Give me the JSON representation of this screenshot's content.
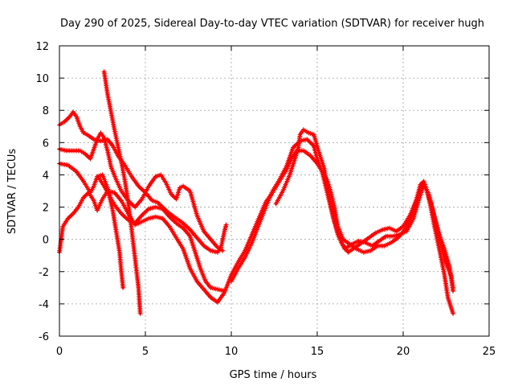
{
  "chart_data": {
    "type": "scatter",
    "title": "Day 290 of 2025, Sidereal Day-to-day VTEC variation (SDTVAR) for receiver hugh",
    "xlabel": "GPS time / hours",
    "ylabel": "SDTVAR / TECUs",
    "xlim": [
      0,
      25
    ],
    "ylim": [
      -6,
      12
    ],
    "xticks": [
      "0",
      "5",
      "10",
      "15",
      "20",
      "25"
    ],
    "yticks": [
      "-6",
      "-4",
      "-2",
      "0",
      "2",
      "4",
      "6",
      "8",
      "10",
      "12"
    ],
    "grid": true,
    "marker": "+",
    "color": "#ff0000",
    "series": [
      {
        "name": "s1",
        "points": [
          [
            0,
            7.1
          ],
          [
            0.3,
            7.3
          ],
          [
            0.6,
            7.6
          ],
          [
            0.8,
            7.9
          ],
          [
            1.0,
            7.6
          ],
          [
            1.2,
            7.0
          ],
          [
            1.4,
            6.6
          ],
          [
            1.6,
            6.5
          ],
          [
            2.0,
            6.2
          ],
          [
            2.4,
            6.1
          ],
          [
            2.8,
            6.2
          ],
          [
            3.1,
            5.8
          ],
          [
            3.4,
            5.2
          ],
          [
            3.8,
            4.6
          ],
          [
            4.2,
            3.9
          ],
          [
            4.6,
            3.3
          ],
          [
            5.0,
            2.9
          ],
          [
            5.4,
            2.4
          ],
          [
            5.7,
            2.3
          ],
          [
            6.0,
            2.0
          ],
          [
            6.4,
            1.6
          ],
          [
            6.8,
            1.3
          ],
          [
            7.2,
            1.0
          ],
          [
            7.6,
            0.6
          ],
          [
            8.0,
            0.1
          ],
          [
            8.4,
            -0.4
          ],
          [
            8.8,
            -0.7
          ],
          [
            9.2,
            -0.8
          ],
          [
            9.4,
            -0.5
          ],
          [
            9.6,
            0.5
          ],
          [
            9.7,
            0.9
          ]
        ]
      },
      {
        "name": "s2",
        "points": [
          [
            0,
            5.6
          ],
          [
            0.4,
            5.5
          ],
          [
            0.8,
            5.5
          ],
          [
            1.2,
            5.5
          ],
          [
            1.5,
            5.3
          ],
          [
            1.8,
            5.0
          ],
          [
            2.0,
            5.6
          ],
          [
            2.2,
            6.2
          ],
          [
            2.4,
            6.6
          ],
          [
            2.6,
            6.3
          ],
          [
            2.8,
            5.5
          ],
          [
            3.0,
            4.5
          ],
          [
            3.3,
            3.7
          ],
          [
            3.6,
            3.0
          ],
          [
            4.0,
            2.4
          ],
          [
            4.4,
            2.0
          ],
          [
            4.8,
            2.5
          ],
          [
            5.2,
            3.3
          ],
          [
            5.6,
            3.9
          ],
          [
            5.9,
            4.0
          ],
          [
            6.2,
            3.5
          ],
          [
            6.5,
            2.8
          ],
          [
            6.8,
            2.5
          ],
          [
            7.0,
            3.2
          ],
          [
            7.2,
            3.3
          ],
          [
            7.6,
            3.0
          ],
          [
            8.0,
            1.5
          ],
          [
            8.4,
            0.5
          ],
          [
            8.8,
            0.0
          ],
          [
            9.2,
            -0.5
          ],
          [
            9.5,
            -0.7
          ]
        ]
      },
      {
        "name": "s3",
        "points": [
          [
            0,
            4.7
          ],
          [
            0.5,
            4.6
          ],
          [
            1.0,
            4.2
          ],
          [
            1.4,
            3.6
          ],
          [
            1.8,
            2.9
          ],
          [
            2.0,
            3.3
          ],
          [
            2.2,
            3.9
          ],
          [
            2.5,
            4.0
          ],
          [
            2.8,
            3.2
          ],
          [
            3.0,
            2.5
          ],
          [
            3.3,
            2.0
          ],
          [
            3.6,
            1.6
          ],
          [
            4.0,
            1.2
          ],
          [
            4.4,
            1.0
          ],
          [
            4.8,
            1.5
          ],
          [
            5.2,
            1.9
          ],
          [
            5.6,
            2.0
          ],
          [
            6.0,
            1.9
          ],
          [
            6.4,
            1.4
          ],
          [
            6.8,
            1.0
          ],
          [
            7.2,
            0.7
          ],
          [
            7.6,
            0.2
          ],
          [
            7.9,
            -0.8
          ],
          [
            8.2,
            -1.8
          ],
          [
            8.5,
            -2.6
          ],
          [
            8.8,
            -3.0
          ],
          [
            9.2,
            -3.1
          ],
          [
            9.6,
            -3.2
          ]
        ]
      },
      {
        "name": "s4",
        "points": [
          [
            0,
            -0.8
          ],
          [
            0.2,
            0.8
          ],
          [
            0.5,
            1.3
          ],
          [
            0.8,
            1.6
          ],
          [
            1.1,
            2.0
          ],
          [
            1.4,
            2.6
          ],
          [
            1.7,
            2.9
          ],
          [
            2.0,
            2.4
          ],
          [
            2.2,
            1.8
          ],
          [
            2.5,
            2.5
          ],
          [
            2.8,
            3.0
          ],
          [
            3.2,
            2.9
          ],
          [
            3.6,
            2.4
          ],
          [
            4.0,
            1.6
          ],
          [
            4.4,
            0.9
          ],
          [
            4.8,
            1.1
          ],
          [
            5.2,
            1.3
          ],
          [
            5.6,
            1.4
          ],
          [
            6.0,
            1.3
          ],
          [
            6.4,
            0.8
          ],
          [
            6.8,
            0.1
          ],
          [
            7.2,
            -0.6
          ],
          [
            7.6,
            -1.8
          ],
          [
            8.0,
            -2.6
          ],
          [
            8.4,
            -3.1
          ],
          [
            8.8,
            -3.6
          ],
          [
            9.2,
            -3.9
          ],
          [
            9.6,
            -3.3
          ],
          [
            10.0,
            -2.2
          ],
          [
            10.4,
            -1.4
          ],
          [
            10.8,
            -0.7
          ],
          [
            11.2,
            0.3
          ],
          [
            11.6,
            1.3
          ],
          [
            12.0,
            2.3
          ],
          [
            12.4,
            2.9
          ],
          [
            12.8,
            3.6
          ],
          [
            13.2,
            4.3
          ],
          [
            13.5,
            5.0
          ],
          [
            13.8,
            5.5
          ],
          [
            14.2,
            5.5
          ],
          [
            14.6,
            5.2
          ],
          [
            15.0,
            4.7
          ],
          [
            15.3,
            4.2
          ],
          [
            15.6,
            3.6
          ],
          [
            15.8,
            2.9
          ],
          [
            16.0,
            2.0
          ],
          [
            16.2,
            0.8
          ],
          [
            16.5,
            0.0
          ],
          [
            16.9,
            -0.3
          ],
          [
            17.3,
            -0.6
          ],
          [
            17.7,
            -0.8
          ],
          [
            18.1,
            -0.7
          ],
          [
            18.5,
            -0.4
          ],
          [
            18.9,
            -0.4
          ],
          [
            19.3,
            -0.2
          ],
          [
            19.7,
            0.1
          ],
          [
            20.1,
            0.6
          ],
          [
            20.5,
            1.5
          ],
          [
            20.8,
            2.6
          ],
          [
            21.0,
            3.4
          ],
          [
            21.2,
            3.6
          ],
          [
            21.4,
            3.0
          ],
          [
            21.6,
            2.0
          ],
          [
            21.8,
            0.9
          ],
          [
            22.1,
            -0.6
          ],
          [
            22.4,
            -2.2
          ],
          [
            22.6,
            -3.6
          ],
          [
            22.9,
            -4.6
          ]
        ]
      },
      {
        "name": "s5",
        "points": [
          [
            10.0,
            -2.6
          ],
          [
            10.4,
            -1.8
          ],
          [
            10.8,
            -1.1
          ],
          [
            11.2,
            -0.2
          ],
          [
            11.6,
            0.9
          ],
          [
            12.0,
            2.0
          ],
          [
            12.4,
            3.0
          ],
          [
            12.8,
            3.7
          ],
          [
            13.2,
            4.5
          ],
          [
            13.6,
            5.7
          ],
          [
            14.0,
            6.1
          ],
          [
            14.4,
            6.2
          ],
          [
            14.8,
            5.8
          ],
          [
            15.0,
            5.0
          ],
          [
            15.3,
            4.1
          ],
          [
            15.6,
            2.8
          ],
          [
            16.0,
            1.1
          ],
          [
            16.4,
            -0.2
          ],
          [
            16.8,
            -0.8
          ],
          [
            17.2,
            -0.5
          ],
          [
            17.6,
            -0.2
          ],
          [
            18.0,
            0.1
          ],
          [
            18.4,
            0.4
          ],
          [
            18.8,
            0.6
          ],
          [
            19.2,
            0.7
          ],
          [
            19.6,
            0.5
          ],
          [
            20.0,
            0.8
          ],
          [
            20.4,
            1.5
          ],
          [
            20.8,
            2.5
          ],
          [
            21.1,
            3.3
          ],
          [
            21.3,
            3.2
          ],
          [
            21.6,
            2.3
          ],
          [
            21.9,
            1.0
          ],
          [
            22.2,
            -0.3
          ],
          [
            22.5,
            -1.5
          ],
          [
            22.8,
            -2.3
          ],
          [
            22.9,
            -3.0
          ]
        ]
      },
      {
        "name": "s6",
        "points": [
          [
            12.6,
            2.2
          ],
          [
            13.0,
            3.0
          ],
          [
            13.4,
            4.0
          ],
          [
            13.7,
            5.0
          ],
          [
            13.9,
            5.7
          ],
          [
            14.0,
            6.5
          ],
          [
            14.2,
            6.8
          ],
          [
            14.5,
            6.6
          ],
          [
            14.8,
            6.5
          ],
          [
            15.1,
            5.4
          ],
          [
            15.4,
            4.4
          ],
          [
            15.6,
            3.2
          ],
          [
            15.9,
            1.5
          ],
          [
            16.2,
            0.3
          ],
          [
            16.6,
            -0.6
          ],
          [
            17.0,
            -0.3
          ],
          [
            17.4,
            -0.1
          ],
          [
            17.8,
            -0.2
          ],
          [
            18.2,
            -0.4
          ],
          [
            18.6,
            -0.1
          ],
          [
            19.0,
            0.2
          ],
          [
            19.4,
            0.2
          ],
          [
            19.8,
            0.3
          ],
          [
            20.2,
            0.5
          ],
          [
            20.6,
            1.3
          ],
          [
            20.9,
            2.4
          ],
          [
            21.2,
            3.4
          ],
          [
            21.5,
            2.8
          ],
          [
            21.8,
            1.5
          ],
          [
            22.1,
            0.3
          ],
          [
            22.4,
            -0.6
          ],
          [
            22.7,
            -1.7
          ],
          [
            22.9,
            -3.2
          ]
        ]
      },
      {
        "name": "s7",
        "points": [
          [
            2.6,
            10.4
          ],
          [
            2.8,
            9.0
          ],
          [
            3.0,
            7.9
          ],
          [
            3.2,
            6.8
          ],
          [
            3.4,
            5.8
          ],
          [
            3.6,
            4.8
          ],
          [
            3.8,
            3.7
          ],
          [
            4.0,
            2.3
          ],
          [
            4.2,
            0.6
          ],
          [
            4.4,
            -1.2
          ],
          [
            4.6,
            -3.0
          ],
          [
            4.7,
            -4.6
          ]
        ]
      },
      {
        "name": "s8",
        "points": [
          [
            2.3,
            3.8
          ],
          [
            2.6,
            3.3
          ],
          [
            2.9,
            2.7
          ],
          [
            3.1,
            1.8
          ],
          [
            3.3,
            0.5
          ],
          [
            3.5,
            -0.8
          ],
          [
            3.6,
            -2.0
          ],
          [
            3.7,
            -3.0
          ]
        ]
      }
    ]
  }
}
